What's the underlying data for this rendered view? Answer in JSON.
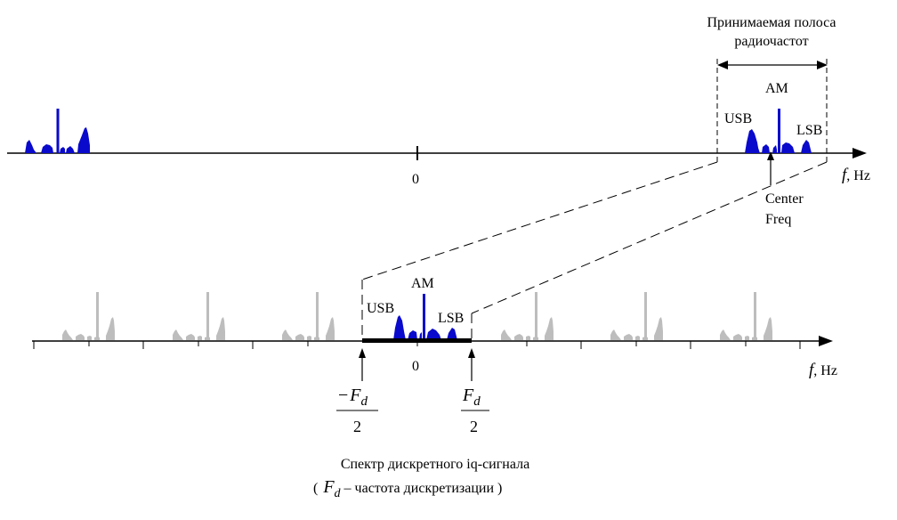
{
  "top": {
    "band_title_line1": "Принимаемая полоса",
    "band_title_line2": "радиочастот",
    "am": "AM",
    "usb": "USB",
    "lsb": "LSB",
    "zero": "0",
    "axis_symbol": "f",
    "axis_unit": ", Hz",
    "center_line1": "Center",
    "center_line2": "Freq"
  },
  "bottom": {
    "am": "AM",
    "usb": "USB",
    "lsb": "LSB",
    "zero": "0",
    "axis_symbol": "f",
    "axis_unit": ", Hz",
    "neg_fd_num_sign": "−",
    "fd_symbol": "F",
    "fd_subscript": "d",
    "fd_denominator": "2"
  },
  "caption": {
    "line1": "Спектр дискретного iq-сигнала",
    "paren_open": "(",
    "fd_symbol": "F",
    "fd_subscript": "d",
    "line2_rest": " – частота дискретизации )"
  },
  "colors": {
    "signal": "#0a0acc",
    "alias": "#bdbdbd",
    "axis": "#000000"
  }
}
